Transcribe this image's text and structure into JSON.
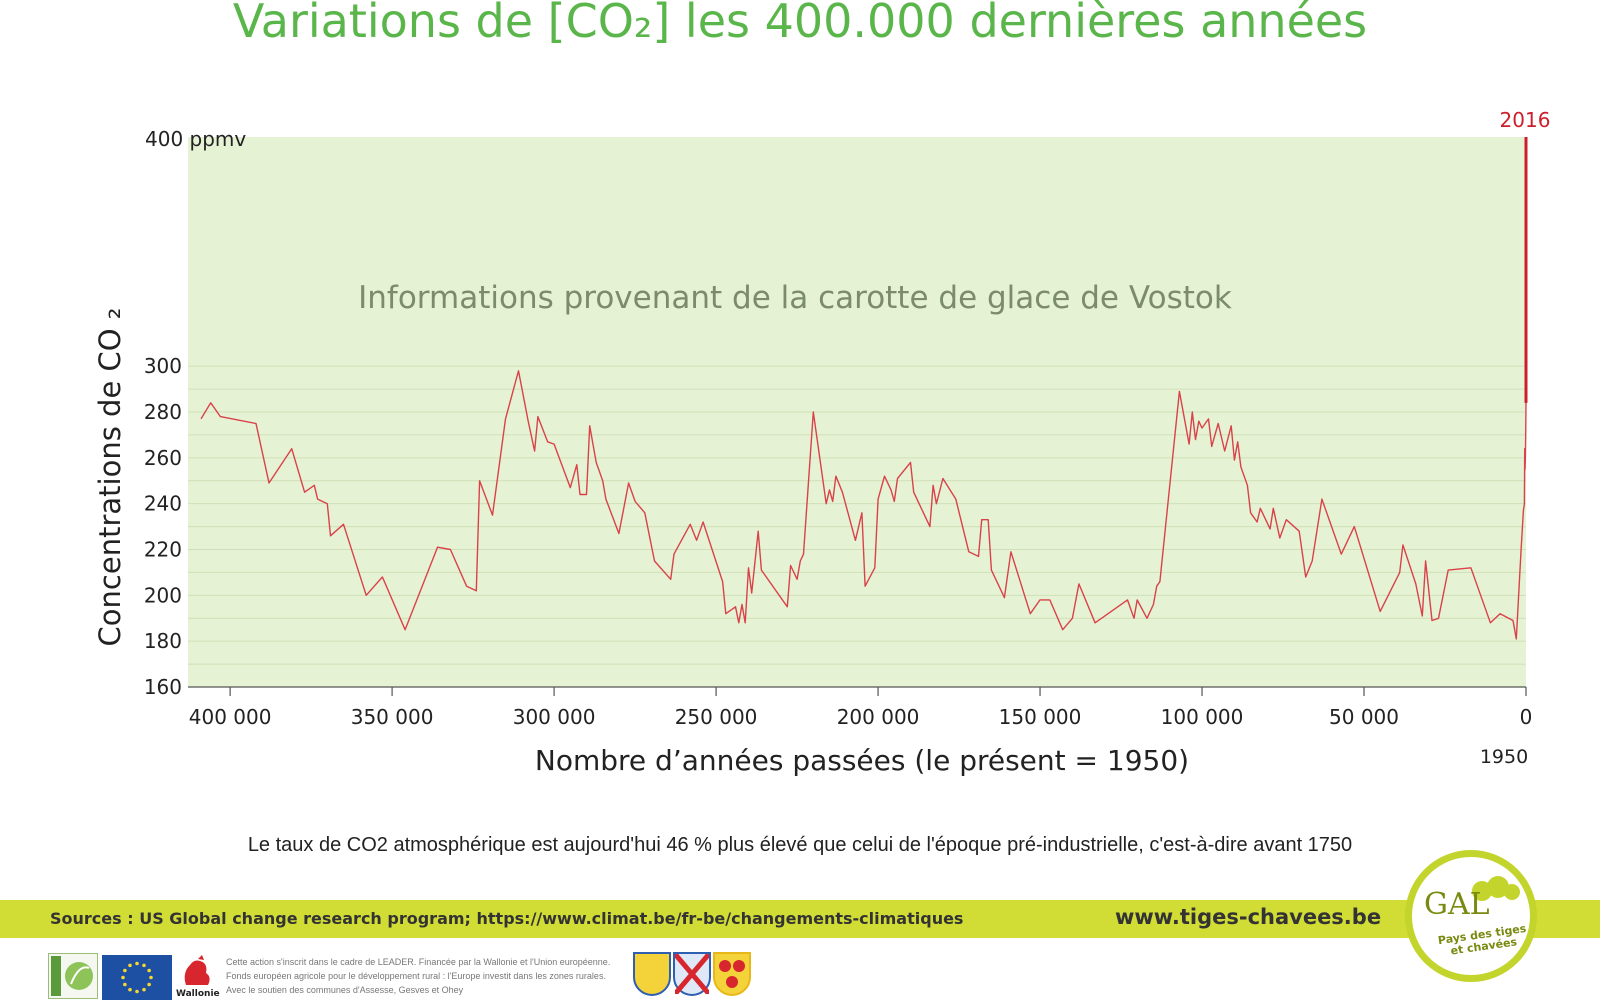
{
  "page": {
    "title": "Variations de [CO₂] les 400.000 dernières années",
    "note": "Le taux de CO2 atmosphérique est aujourd'hui 46 % plus élevé que celui de l'époque pré-industrielle, c'est-à-dire avant 1750",
    "sources": "Sources : US Global change research program; https://www.climat.be/fr-be/changements-climatiques",
    "website": "www.tiges-chavees.be",
    "gal_logo_text": "GAL",
    "gal_logo_subtitle": "Pays des tiges et chavées",
    "wallonie_label": "Wallonie",
    "leader_text": [
      "Cette action s'inscrit dans le cadre de LEADER. Financée par la Wallonie et l'Union européenne.",
      "Fonds européen agricole pour le développement rural : l'Europe investit dans les zones rurales.",
      "Avec le soutien des communes d'Assesse, Gesves et Ohey"
    ],
    "colors": {
      "title": "#5ab64a",
      "plot_bg": "#e6f2d4",
      "line": "#d9424a",
      "marker_2016": "#cc1f2b",
      "band": "#d1dc34",
      "annotation": "#7b8c6a"
    }
  },
  "chart_data": {
    "type": "line",
    "title": "Variations de [CO₂] les 400.000 dernières années",
    "xlabel": "Nombre d’années passées (le présent = 1950)",
    "ylabel": "Concentrations de CO ₂",
    "annotation": "Informations provenant de la carotte de glace de Vostok",
    "top_label": "400 ppmv",
    "xlim": [
      413000,
      0
    ],
    "ylim": [
      160,
      400
    ],
    "x_reversed": true,
    "grid": "horizontal",
    "y_ticks": [
      {
        "value": 160,
        "label": "160"
      },
      {
        "value": 180,
        "label": "180"
      },
      {
        "value": 200,
        "label": "200"
      },
      {
        "value": 220,
        "label": "220"
      },
      {
        "value": 240,
        "label": "240"
      },
      {
        "value": 260,
        "label": "260"
      },
      {
        "value": 280,
        "label": "280"
      },
      {
        "value": 300,
        "label": "300"
      }
    ],
    "x_ticks": [
      {
        "value": 400000,
        "label": "400 000"
      },
      {
        "value": 350000,
        "label": "350 000"
      },
      {
        "value": 300000,
        "label": "300 000"
      },
      {
        "value": 250000,
        "label": "250 000"
      },
      {
        "value": 200000,
        "label": "200 000"
      },
      {
        "value": 150000,
        "label": "150 000"
      },
      {
        "value": 100000,
        "label": "100 000"
      },
      {
        "value": 50000,
        "label": "50 000"
      },
      {
        "value": 0,
        "label": "0"
      }
    ],
    "present_label": "1950",
    "marker_2016": {
      "label": "2016",
      "x": 0,
      "y_from": 284,
      "y_to": 400
    },
    "series": [
      {
        "values": [
          [
            409000,
            277
          ],
          [
            406000,
            284
          ],
          [
            403000,
            278
          ],
          [
            392000,
            275
          ],
          [
            388000,
            249
          ],
          [
            381000,
            264
          ],
          [
            377000,
            245
          ],
          [
            374000,
            248
          ],
          [
            373000,
            242
          ],
          [
            370000,
            240
          ],
          [
            369000,
            226
          ],
          [
            365000,
            231
          ],
          [
            358000,
            200
          ],
          [
            353000,
            208
          ],
          [
            346000,
            185
          ],
          [
            336000,
            221
          ],
          [
            332000,
            220
          ],
          [
            327000,
            204
          ],
          [
            324000,
            202
          ],
          [
            323000,
            250
          ],
          [
            319000,
            235
          ],
          [
            315000,
            277
          ],
          [
            311000,
            298
          ],
          [
            308000,
            276
          ],
          [
            306000,
            263
          ],
          [
            305000,
            278
          ],
          [
            302000,
            267
          ],
          [
            300000,
            266
          ],
          [
            295000,
            247
          ],
          [
            293000,
            257
          ],
          [
            292000,
            244
          ],
          [
            290000,
            244
          ],
          [
            289000,
            274
          ],
          [
            287000,
            258
          ],
          [
            285000,
            250
          ],
          [
            284000,
            242
          ],
          [
            280000,
            227
          ],
          [
            277000,
            249
          ],
          [
            275000,
            241
          ],
          [
            272000,
            236
          ],
          [
            269000,
            215
          ],
          [
            264000,
            207
          ],
          [
            263000,
            218
          ],
          [
            258000,
            231
          ],
          [
            256000,
            224
          ],
          [
            254000,
            232
          ],
          [
            248000,
            206
          ],
          [
            247000,
            192
          ],
          [
            244000,
            195
          ],
          [
            243000,
            188
          ],
          [
            242000,
            196
          ],
          [
            241000,
            188
          ],
          [
            240000,
            212
          ],
          [
            239000,
            201
          ],
          [
            237000,
            228
          ],
          [
            236000,
            211
          ],
          [
            228000,
            195
          ],
          [
            227000,
            213
          ],
          [
            225000,
            207
          ],
          [
            224000,
            215
          ],
          [
            223000,
            218
          ],
          [
            220000,
            280
          ],
          [
            216000,
            240
          ],
          [
            215000,
            246
          ],
          [
            214000,
            241
          ],
          [
            213000,
            252
          ],
          [
            211000,
            245
          ],
          [
            207000,
            224
          ],
          [
            205000,
            236
          ],
          [
            204000,
            204
          ],
          [
            201000,
            212
          ],
          [
            200000,
            242
          ],
          [
            198000,
            252
          ],
          [
            196000,
            246
          ],
          [
            195000,
            241
          ],
          [
            194000,
            251
          ],
          [
            190000,
            258
          ],
          [
            189000,
            245
          ],
          [
            184000,
            230
          ],
          [
            183000,
            248
          ],
          [
            182000,
            240
          ],
          [
            180000,
            251
          ],
          [
            176000,
            242
          ],
          [
            172000,
            219
          ],
          [
            169000,
            217
          ],
          [
            168000,
            233
          ],
          [
            166000,
            233
          ],
          [
            165000,
            211
          ],
          [
            161000,
            199
          ],
          [
            159000,
            219
          ],
          [
            153000,
            192
          ],
          [
            150000,
            198
          ],
          [
            147000,
            198
          ],
          [
            143000,
            185
          ],
          [
            140000,
            190
          ],
          [
            138000,
            205
          ],
          [
            133000,
            188
          ],
          [
            123000,
            198
          ],
          [
            121000,
            190
          ],
          [
            120000,
            198
          ],
          [
            117000,
            190
          ],
          [
            115000,
            196
          ],
          [
            114000,
            204
          ],
          [
            113000,
            206
          ],
          [
            107000,
            289
          ],
          [
            104000,
            266
          ],
          [
            103000,
            280
          ],
          [
            102000,
            268
          ],
          [
            101000,
            276
          ],
          [
            100000,
            273
          ],
          [
            98000,
            277
          ],
          [
            97000,
            265
          ],
          [
            95000,
            275
          ],
          [
            93000,
            263
          ],
          [
            91000,
            274
          ],
          [
            90000,
            259
          ],
          [
            89000,
            267
          ],
          [
            88000,
            256
          ],
          [
            86000,
            248
          ],
          [
            85000,
            236
          ],
          [
            83000,
            232
          ],
          [
            82000,
            238
          ],
          [
            79000,
            229
          ],
          [
            78000,
            238
          ],
          [
            76000,
            225
          ],
          [
            74000,
            233
          ],
          [
            70000,
            228
          ],
          [
            68000,
            208
          ],
          [
            66000,
            215
          ],
          [
            63000,
            242
          ],
          [
            57000,
            218
          ],
          [
            53000,
            230
          ],
          [
            45000,
            193
          ],
          [
            39000,
            210
          ],
          [
            38000,
            222
          ],
          [
            34000,
            205
          ],
          [
            32000,
            191
          ],
          [
            31000,
            215
          ],
          [
            29000,
            189
          ],
          [
            27000,
            190
          ],
          [
            24000,
            211
          ],
          [
            17000,
            212
          ],
          [
            11000,
            188
          ],
          [
            8000,
            192
          ],
          [
            4000,
            189
          ],
          [
            3000,
            181
          ],
          [
            1500,
            220
          ],
          [
            800,
            237
          ],
          [
            500,
            240
          ],
          [
            400,
            264
          ],
          [
            300,
            255
          ],
          [
            200,
            260
          ],
          [
            100,
            270
          ],
          [
            0,
            284
          ]
        ]
      }
    ]
  }
}
